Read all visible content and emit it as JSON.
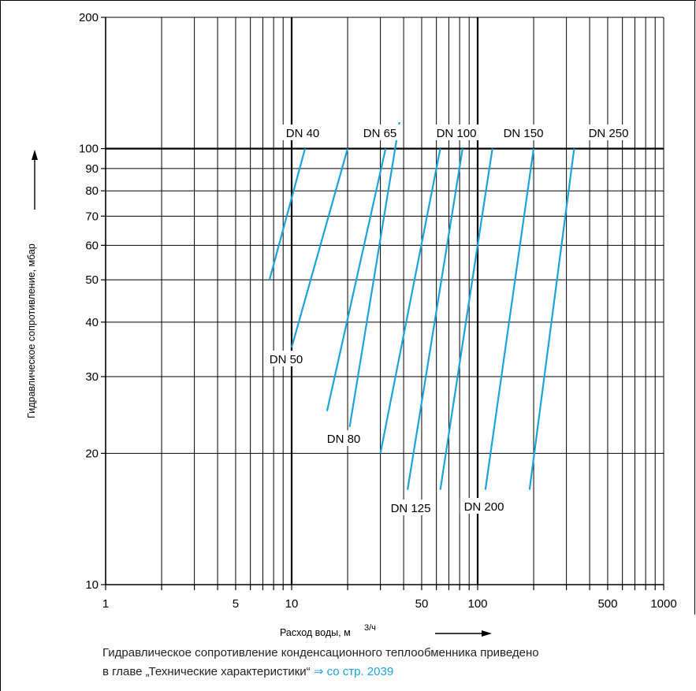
{
  "chart_data": {
    "type": "line",
    "xlabel": "Расход воды, м",
    "xlabel_unit": "3/ч",
    "ylabel": "Гидравлическое сопротивление, мбар",
    "x_scale": "log",
    "y_scale": "log",
    "xlim": [
      1,
      1000
    ],
    "ylim": [
      10,
      200
    ],
    "grid": true,
    "x_tick_labels": [
      {
        "value": 1,
        "label": "1"
      },
      {
        "value": 5,
        "label": "5"
      },
      {
        "value": 10,
        "label": "10"
      },
      {
        "value": 50,
        "label": "50"
      },
      {
        "value": 100,
        "label": "100"
      },
      {
        "value": 500,
        "label": "500"
      },
      {
        "value": 1000,
        "label": "1000"
      }
    ],
    "y_tick_labels": [
      {
        "value": 10,
        "label": "10"
      },
      {
        "value": 20,
        "label": "20"
      },
      {
        "value": 30,
        "label": "30"
      },
      {
        "value": 40,
        "label": "40"
      },
      {
        "value": 50,
        "label": "50"
      },
      {
        "value": 60,
        "label": "60"
      },
      {
        "value": 70,
        "label": "70"
      },
      {
        "value": 80,
        "label": "80"
      },
      {
        "value": 90,
        "label": "90"
      },
      {
        "value": 100,
        "label": "100"
      },
      {
        "value": 200,
        "label": "200"
      }
    ],
    "series": [
      {
        "name": "DN 40",
        "x": [
          7.6,
          11.8
        ],
        "y": [
          50,
          100
        ]
      },
      {
        "name": "DN 50",
        "x": [
          10.0,
          20.0
        ],
        "y": [
          35,
          100
        ]
      },
      {
        "name": "DN 65",
        "x": [
          15.5,
          32.0
        ],
        "y": [
          25,
          100
        ]
      },
      {
        "name": "DN 80",
        "x": [
          20.5,
          38.0
        ],
        "y": [
          23,
          115
        ]
      },
      {
        "name": "DN 100",
        "x": [
          30.0,
          63.0
        ],
        "y": [
          20,
          100
        ]
      },
      {
        "name": "DN 125",
        "x": [
          42.0,
          83.0
        ],
        "y": [
          16.5,
          100
        ]
      },
      {
        "name": "DN 150",
        "x": [
          63.0,
          120.0
        ],
        "y": [
          16.5,
          100
        ]
      },
      {
        "name": "DN 200",
        "x": [
          110.0,
          200.0
        ],
        "y": [
          16.5,
          100
        ]
      },
      {
        "name": "DN 250",
        "x": [
          190.0,
          330.0
        ],
        "y": [
          16.5,
          100
        ]
      }
    ],
    "labels": [
      "DN 40",
      "DN 65",
      "DN 100",
      "DN 150",
      "DN 250",
      "DN 50",
      "DN 80",
      "DN 125",
      "DN 200"
    ],
    "line_color": "#1aa3dc"
  },
  "caption": {
    "line1": "Гидравлическое сопротивление конденсационного теплообменника приведено",
    "line2": "в главе „Технические характеристики“ ",
    "arrow": "⇒",
    "link": " со стр. 2039"
  }
}
